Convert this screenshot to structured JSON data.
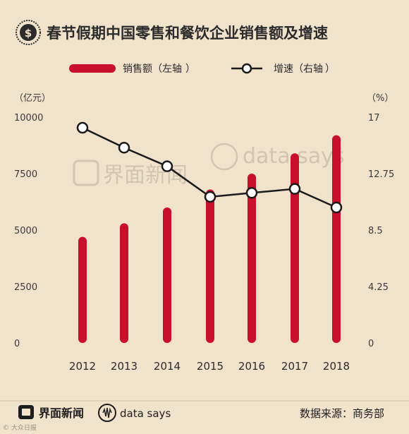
{
  "header": {
    "title": "春节假期中国零售和餐饮企业销售额及增速",
    "logo_icon": "dollar-coin-icon"
  },
  "legend": {
    "sales_label": "销售额（左轴",
    "sales_close": "）",
    "growth_label": "增速（右轴",
    "growth_close": "）"
  },
  "axes": {
    "left_unit": "（亿元）",
    "right_unit": "（%）"
  },
  "footer": {
    "brand": "界面新闻",
    "data_says": "data says",
    "source": "数据来源：商务部",
    "corner_mark": "© 大众日报"
  },
  "watermark": {
    "brand": "界面新闻",
    "data_says": "data says"
  },
  "chart_data": {
    "type": "bar",
    "categories": [
      "2012",
      "2013",
      "2014",
      "2015",
      "2016",
      "2017",
      "2018"
    ],
    "series": [
      {
        "name": "销售额（左轴）",
        "type": "bar",
        "axis": "left",
        "values": [
          4700,
          5300,
          6000,
          6800,
          7500,
          8400,
          9200
        ]
      },
      {
        "name": "增速（右轴）",
        "type": "line",
        "axis": "right",
        "values": [
          16.2,
          14.7,
          13.3,
          11.0,
          11.3,
          11.6,
          10.2
        ]
      }
    ],
    "ylim_left": [
      0,
      10000
    ],
    "ylim_right": [
      0,
      17
    ],
    "yticks_left": [
      "10000",
      "7500",
      "5000",
      "2500",
      "0"
    ],
    "yticks_right": [
      "17",
      "12.75",
      "8.5",
      "4.25",
      "0"
    ],
    "colors": {
      "bar": "#c8102e",
      "line": "#1a1a1a",
      "marker_fill": "#ffffff",
      "background": "#f1e2cb"
    }
  }
}
